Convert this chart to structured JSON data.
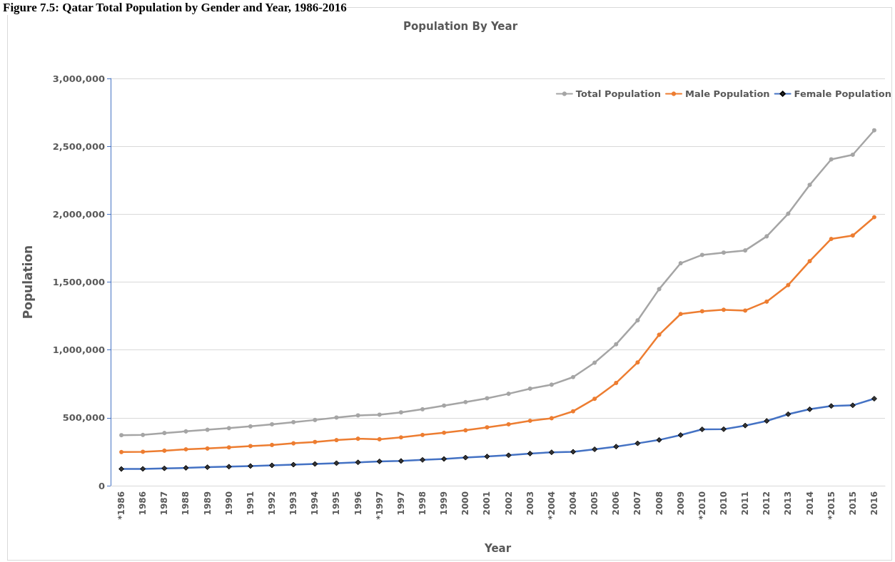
{
  "chart_data": {
    "type": "line",
    "title": "Figure 7.5: Qatar Total Population by Gender and Year, 1986-2016",
    "subtitle": "Population By Year",
    "xlabel": "Year",
    "ylabel": "Population",
    "categories": [
      "*1986",
      "1986",
      "1987",
      "1988",
      "1989",
      "1990",
      "1991",
      "1992",
      "1993",
      "1994",
      "1995",
      "1996",
      "*1997",
      "1997",
      "1998",
      "1999",
      "2000",
      "2001",
      "2002",
      "2003",
      "*2004",
      "2004",
      "2005",
      "2006",
      "2007",
      "2008",
      "2009",
      "*2010",
      "2010",
      "2011",
      "2012",
      "2013",
      "2014",
      "*2015",
      "2015",
      "2016"
    ],
    "series": [
      {
        "name": "Total Population",
        "color": "#a5a5a5",
        "marker": "circle",
        "values": [
          372000,
          374000,
          388000,
          400000,
          412000,
          424000,
          437000,
          452000,
          468000,
          484000,
          502000,
          518000,
          523000,
          540000,
          563000,
          590000,
          616000,
          644000,
          677000,
          715000,
          744000,
          800000,
          906000,
          1042000,
          1218000,
          1448000,
          1639000,
          1700000,
          1717000,
          1733000,
          1837000,
          2004000,
          2216000,
          2404000,
          2438000,
          2618000
        ]
      },
      {
        "name": "Male Population",
        "color": "#ed7d31",
        "marker": "circle",
        "values": [
          248000,
          250000,
          258000,
          268000,
          274000,
          282000,
          292000,
          300000,
          312000,
          322000,
          336000,
          346000,
          342000,
          356000,
          374000,
          390000,
          408000,
          430000,
          452000,
          478000,
          497000,
          548000,
          640000,
          757000,
          908000,
          1112000,
          1265000,
          1285000,
          1296000,
          1290000,
          1356000,
          1478000,
          1654000,
          1818000,
          1843000,
          1978000
        ]
      },
      {
        "name": "Female Population",
        "color": "#4472c4",
        "marker": "diamond",
        "values": [
          123000,
          124000,
          128000,
          131000,
          136000,
          140000,
          145000,
          150000,
          155000,
          160000,
          166000,
          172000,
          179000,
          182000,
          190000,
          197000,
          207000,
          215000,
          224000,
          237000,
          246000,
          250000,
          268000,
          288000,
          312000,
          337000,
          373000,
          415000,
          416000,
          443000,
          477000,
          527000,
          563000,
          587000,
          592000,
          641000
        ]
      }
    ],
    "ylim": [
      0,
      3000000
    ],
    "yticks": [
      0,
      {
        "value": 500000,
        "label": "500,000"
      },
      {
        "value": 1000000,
        "label": "1,000,000"
      },
      {
        "value": 1500000,
        "label": "1,500,000"
      },
      {
        "value": 2000000,
        "label": "2,000,000"
      },
      {
        "value": 2500000,
        "label": "2,500,000"
      },
      {
        "value": 3000000,
        "label": "3,000,000"
      }
    ],
    "grid": "y",
    "legend": "top right",
    "line_style": "solid"
  }
}
